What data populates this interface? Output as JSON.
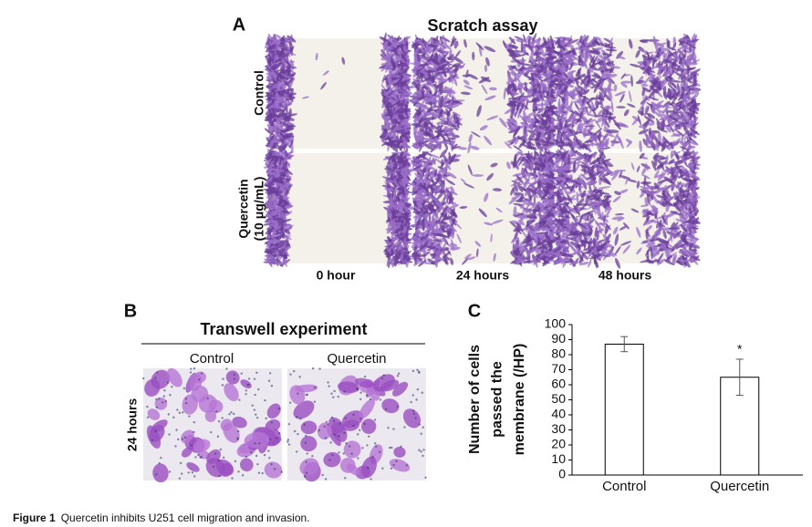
{
  "panel_a": {
    "letter": "A",
    "title": "Scratch assay",
    "rows": [
      "Control",
      [
        "Quercetin",
        "(10 μg/mL)"
      ]
    ],
    "columns": [
      "0 hour",
      "24 hours",
      "48 hours"
    ]
  },
  "panel_b": {
    "letter": "B",
    "title": "Transwell experiment",
    "columns": [
      "Control",
      "Quercetin"
    ],
    "row": "24 hours"
  },
  "panel_c": {
    "letter": "C"
  },
  "chart_data": {
    "type": "bar",
    "categories": [
      "Control",
      "Quercetin"
    ],
    "values": [
      87,
      65
    ],
    "errors": [
      5,
      12
    ],
    "annotation": "*",
    "y_label": [
      "Number of cells",
      "passed the",
      "membrane (/HP)"
    ],
    "color": "#ffffff",
    "ylim": [
      0,
      100
    ],
    "yticks": [
      0,
      10,
      20,
      30,
      40,
      50,
      60,
      70,
      80,
      90,
      100
    ]
  },
  "caption": {
    "label": "Figure 1",
    "text": "Quercetin inhibits U251 cell migration and invasion."
  }
}
